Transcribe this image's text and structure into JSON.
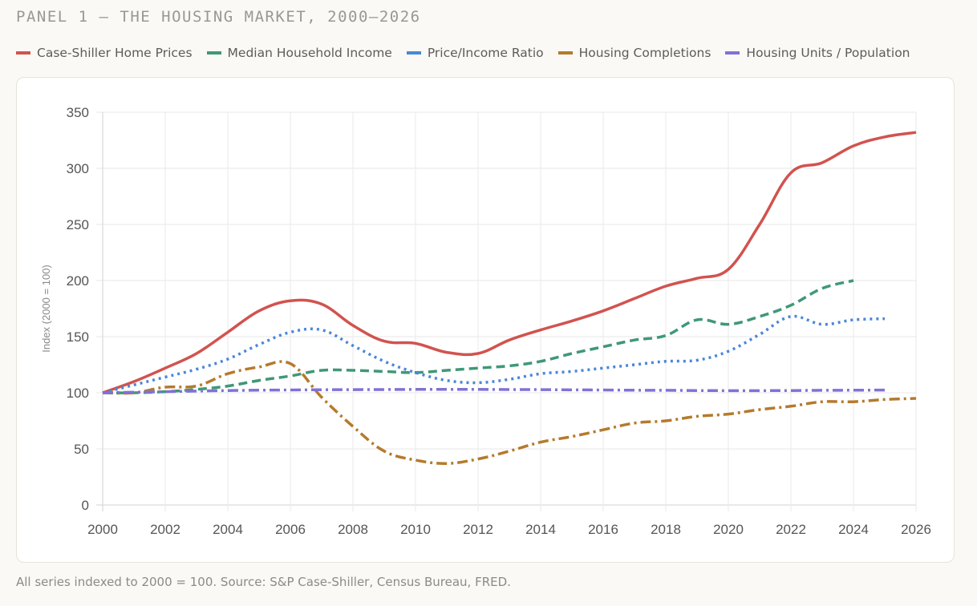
{
  "panel": {
    "title": "PANEL 1 — THE HOUSING MARKET, 2000–2026",
    "footnote": "All series indexed to 2000 = 100. Source: S&P Case-Shiller, Census Bureau, FRED."
  },
  "chart_data": {
    "type": "line",
    "title": "PANEL 1 — THE HOUSING MARKET, 2000–2026",
    "xlabel": "",
    "ylabel": "Index (2000 = 100)",
    "xlim": [
      2000,
      2026
    ],
    "ylim": [
      0,
      350
    ],
    "xticks": [
      2000,
      2002,
      2004,
      2006,
      2008,
      2010,
      2012,
      2014,
      2016,
      2018,
      2020,
      2022,
      2024,
      2026
    ],
    "yticks": [
      0,
      50,
      100,
      150,
      200,
      250,
      300,
      350
    ],
    "grid": true,
    "legend_position": "top",
    "series": [
      {
        "name": "Case-Shiller Home Prices",
        "color": "#d1534f",
        "style": "solid",
        "x": [
          2000,
          2001,
          2002,
          2003,
          2004,
          2005,
          2006,
          2007,
          2008,
          2009,
          2010,
          2011,
          2012,
          2013,
          2014,
          2015,
          2016,
          2017,
          2018,
          2019,
          2020,
          2021,
          2022,
          2023,
          2024,
          2025,
          2026
        ],
        "values": [
          100,
          110,
          122,
          135,
          154,
          173,
          182,
          179,
          160,
          146,
          144,
          136,
          135,
          147,
          156,
          164,
          173,
          184,
          195,
          202,
          210,
          250,
          296,
          305,
          320,
          328,
          332
        ]
      },
      {
        "name": "Median Household Income",
        "color": "#3f9876",
        "style": "dashed",
        "x": [
          2000,
          2001,
          2002,
          2003,
          2004,
          2005,
          2006,
          2007,
          2008,
          2009,
          2010,
          2011,
          2012,
          2013,
          2014,
          2015,
          2016,
          2017,
          2018,
          2019,
          2020,
          2021,
          2022,
          2023,
          2024
        ],
        "values": [
          100,
          100,
          101,
          103,
          106,
          111,
          115,
          120,
          120,
          119,
          118,
          120,
          122,
          124,
          128,
          135,
          141,
          147,
          151,
          165,
          161,
          168,
          178,
          193,
          200
        ]
      },
      {
        "name": "Price/Income Ratio",
        "color": "#4a87d8",
        "style": "dotted",
        "x": [
          2000,
          2001,
          2002,
          2003,
          2004,
          2005,
          2006,
          2007,
          2008,
          2009,
          2010,
          2011,
          2012,
          2013,
          2014,
          2015,
          2016,
          2017,
          2018,
          2019,
          2020,
          2021,
          2022,
          2023,
          2024,
          2025
        ],
        "values": [
          100,
          107,
          114,
          121,
          130,
          143,
          154,
          156,
          142,
          128,
          118,
          111,
          109,
          112,
          117,
          119,
          122,
          125,
          128,
          129,
          137,
          152,
          168,
          161,
          165,
          166
        ]
      },
      {
        "name": "Housing Completions",
        "color": "#b57a2c",
        "style": "dashdot",
        "x": [
          2000,
          2001,
          2002,
          2003,
          2004,
          2005,
          2006,
          2007,
          2008,
          2009,
          2010,
          2011,
          2012,
          2013,
          2014,
          2015,
          2016,
          2017,
          2018,
          2019,
          2020,
          2021,
          2022,
          2023,
          2024,
          2025,
          2026
        ],
        "values": [
          100,
          100,
          105,
          106,
          117,
          123,
          126,
          96,
          70,
          48,
          40,
          37,
          41,
          48,
          56,
          61,
          67,
          73,
          75,
          79,
          81,
          85,
          88,
          92,
          92,
          94,
          95
        ]
      },
      {
        "name": "Housing Units / Population",
        "color": "#7f72d6",
        "style": "dashdot",
        "x": [
          2000,
          2001,
          2002,
          2003,
          2004,
          2005,
          2006,
          2007,
          2008,
          2009,
          2010,
          2011,
          2012,
          2013,
          2014,
          2015,
          2016,
          2017,
          2018,
          2019,
          2020,
          2021,
          2022,
          2023,
          2024,
          2025
        ],
        "values": [
          100,
          100.5,
          101,
          101.5,
          102,
          102.3,
          102.5,
          102.7,
          102.8,
          102.9,
          103,
          103,
          103,
          102.9,
          102.8,
          102.6,
          102.5,
          102.3,
          102.2,
          102,
          101.9,
          101.9,
          102,
          102.2,
          102.3,
          102.4
        ]
      }
    ]
  }
}
